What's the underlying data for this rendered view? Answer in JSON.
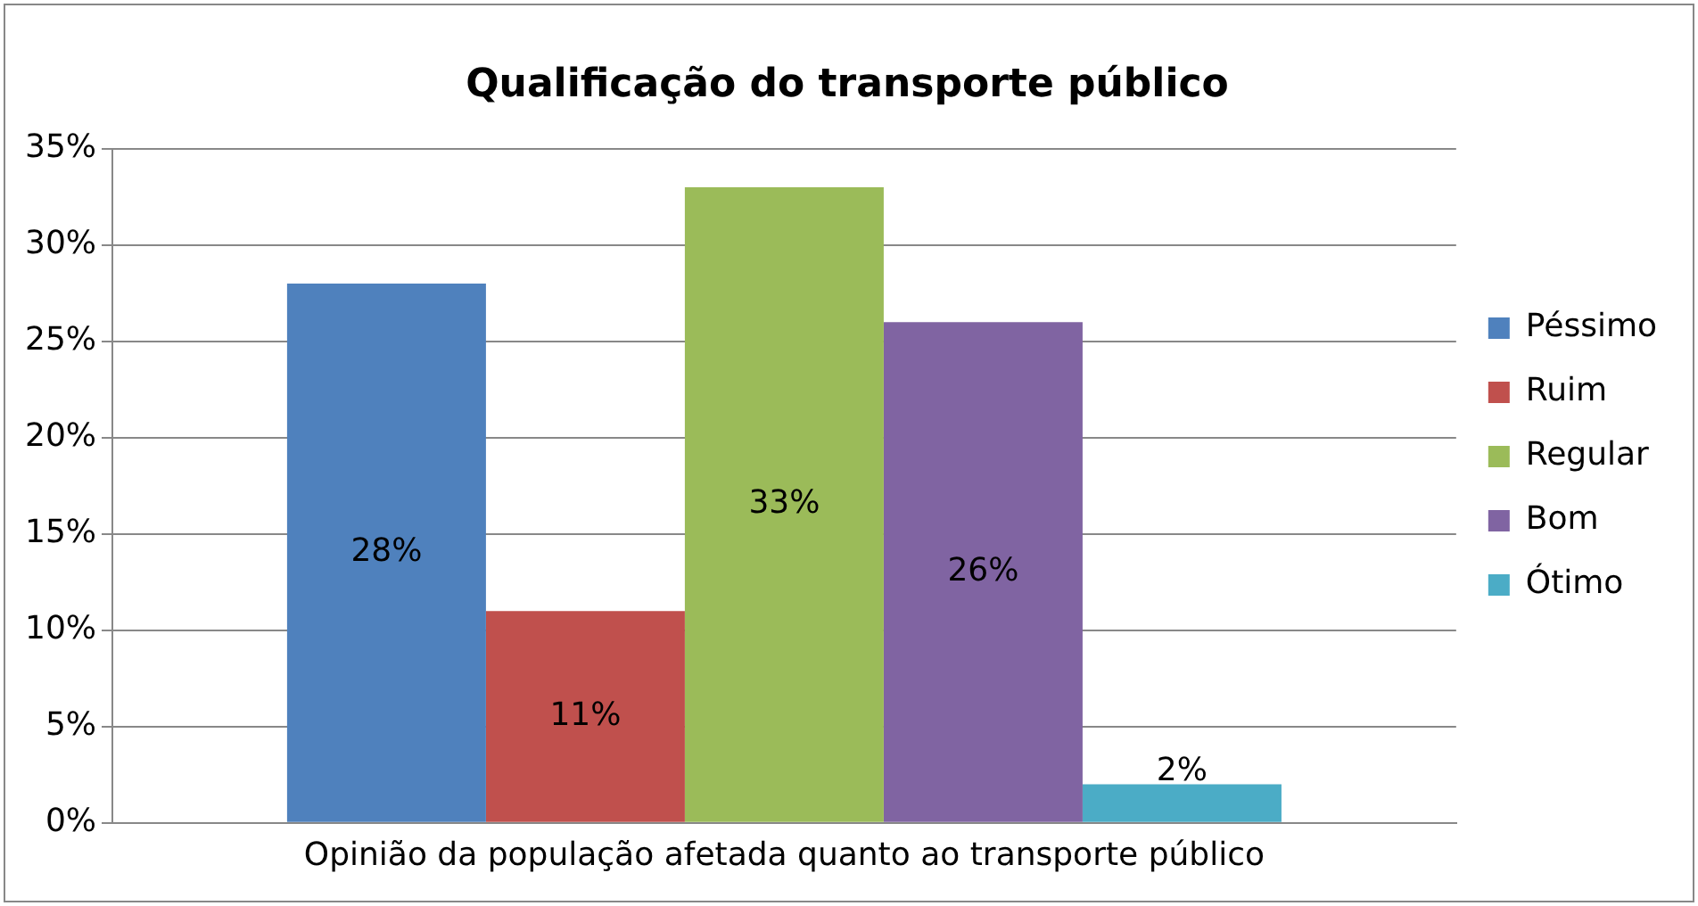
{
  "chart_data": {
    "type": "bar",
    "title": "Qualificação do transporte público",
    "categories": [
      "Opinião da população afetada quanto ao transporte público"
    ],
    "series": [
      {
        "name": "Péssimo",
        "color": "#4f81bd",
        "values": [
          28
        ],
        "value_labels": [
          "28%"
        ]
      },
      {
        "name": "Ruim",
        "color": "#c0504d",
        "values": [
          11
        ],
        "value_labels": [
          "11%"
        ]
      },
      {
        "name": "Regular",
        "color": "#9bbb59",
        "values": [
          33
        ],
        "value_labels": [
          "33%"
        ]
      },
      {
        "name": "Bom",
        "color": "#8064a2",
        "values": [
          26
        ],
        "value_labels": [
          "26%"
        ]
      },
      {
        "name": "Ótimo",
        "color": "#4bacc6",
        "values": [
          2
        ],
        "value_labels": [
          "2%"
        ]
      }
    ],
    "ylim": [
      0,
      35
    ],
    "yticks": [
      {
        "value": 0,
        "label": "0%"
      },
      {
        "value": 5,
        "label": "5%"
      },
      {
        "value": 10,
        "label": "10%"
      },
      {
        "value": 15,
        "label": "15%"
      },
      {
        "value": 20,
        "label": "20%"
      },
      {
        "value": 25,
        "label": "25%"
      },
      {
        "value": 30,
        "label": "30%"
      },
      {
        "value": 35,
        "label": "35%"
      }
    ],
    "grid": "y",
    "legend": "right"
  }
}
